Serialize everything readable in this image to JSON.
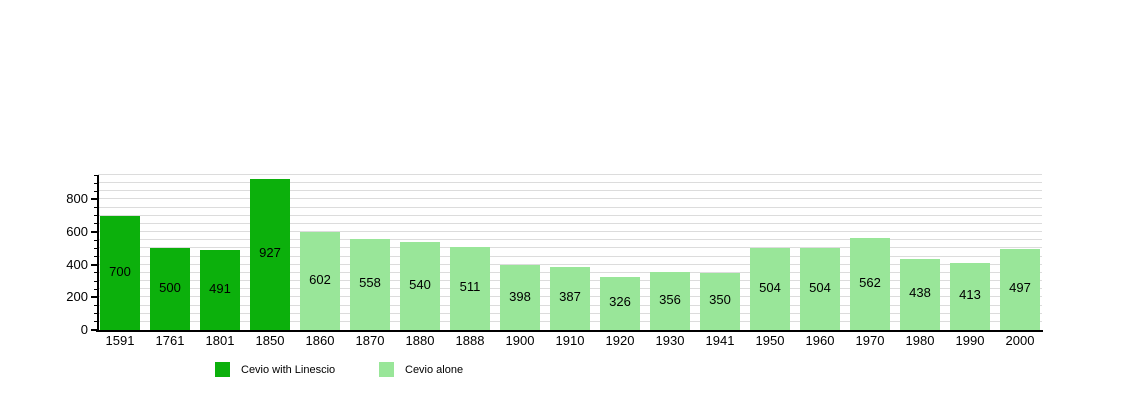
{
  "chart_data": {
    "type": "bar",
    "title": "",
    "categories": [
      "1591",
      "1761",
      "1801",
      "1850",
      "1860",
      "1870",
      "1880",
      "1888",
      "1900",
      "1910",
      "1920",
      "1930",
      "1941",
      "1950",
      "1960",
      "1970",
      "1980",
      "1990",
      "2000"
    ],
    "series": [
      {
        "name": "Cevio with Linescio",
        "color": "#0cb00c",
        "values": [
          700,
          500,
          491,
          927,
          null,
          null,
          null,
          null,
          null,
          null,
          null,
          null,
          null,
          null,
          null,
          null,
          null,
          null,
          null
        ]
      },
      {
        "name": "Cevio alone",
        "color": "#99e699",
        "values": [
          null,
          null,
          null,
          null,
          602,
          558,
          540,
          511,
          398,
          387,
          326,
          356,
          350,
          504,
          504,
          562,
          438,
          413,
          497
        ]
      }
    ],
    "bar_value_labels_shown": true,
    "xlabel": "",
    "ylabel": "",
    "ylim": [
      0,
      950
    ],
    "yticks": [
      0,
      200,
      400,
      600,
      800
    ],
    "minor_tick_step": 50,
    "gridline_step": 50,
    "grid": "horizontal",
    "legend_position": "bottom-left"
  },
  "legend": {
    "items": [
      {
        "label": "Cevio with Linescio",
        "color": "#0cb00c"
      },
      {
        "label": "Cevio alone",
        "color": "#99e699"
      }
    ]
  },
  "colors": {
    "axis": "#000000",
    "gridline": "#dcdcdc",
    "background": "#ffffff"
  }
}
